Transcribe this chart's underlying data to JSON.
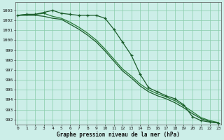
{
  "title": "Graphe pression niveau de la mer (hPa)",
  "xlabel_hours": [
    0,
    1,
    2,
    3,
    4,
    5,
    6,
    7,
    8,
    9,
    10,
    11,
    12,
    13,
    14,
    15,
    16,
    17,
    18,
    19,
    20,
    21,
    22,
    23
  ],
  "ylim": [
    991.5,
    1003.8
  ],
  "yticks": [
    992,
    993,
    994,
    995,
    996,
    997,
    998,
    999,
    1000,
    1001,
    1002,
    1003
  ],
  "xlim": [
    -0.3,
    23.3
  ],
  "background_color": "#cceee8",
  "grid_color": "#88ccaa",
  "line_color_dark": "#1a5c2a",
  "line_color_mid": "#2a7a3a",
  "line_marker": [
    1002.5,
    1002.6,
    1002.6,
    1002.8,
    1003.0,
    1002.7,
    1002.6,
    1002.5,
    1002.5,
    1002.5,
    1002.2,
    1001.1,
    999.8,
    998.5,
    996.6,
    995.2,
    994.8,
    994.4,
    994.1,
    993.5,
    992.3,
    991.9,
    991.75,
    991.65
  ],
  "line_smooth1": [
    1002.5,
    1002.5,
    1002.5,
    1002.4,
    1002.2,
    1002.1,
    1001.6,
    1001.1,
    1000.5,
    999.8,
    998.9,
    997.9,
    996.9,
    996.2,
    995.4,
    994.8,
    994.4,
    994.1,
    993.7,
    993.2,
    992.6,
    992.1,
    991.8,
    991.65
  ],
  "line_smooth2": [
    1002.5,
    1002.6,
    1002.6,
    1002.7,
    1002.4,
    1002.2,
    1001.8,
    1001.3,
    1000.7,
    1000.0,
    999.1,
    998.1,
    997.1,
    996.4,
    995.6,
    995.0,
    994.6,
    994.3,
    993.9,
    993.4,
    992.8,
    992.2,
    991.9,
    991.7
  ]
}
